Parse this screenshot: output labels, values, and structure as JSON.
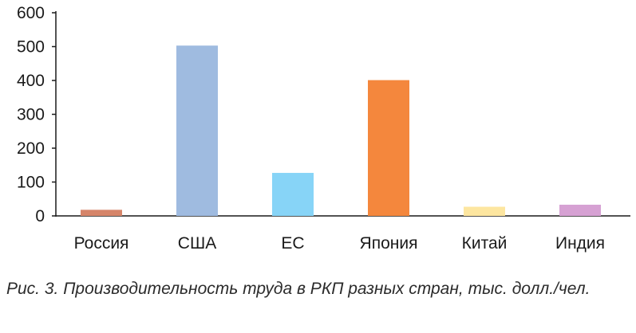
{
  "caption": "Рис. 3. Производительность труда в РКП разных стран, тыс. долл./чел.",
  "chart_data": {
    "type": "bar",
    "categories": [
      "Россия",
      "США",
      "ЕС",
      "Япония",
      "Китай",
      "Индия"
    ],
    "values": [
      18,
      503,
      127,
      401,
      27,
      33
    ],
    "colors": [
      "#d6856a",
      "#9fbbe0",
      "#87d4f7",
      "#f4873d",
      "#fde6a0",
      "#d6a1d3"
    ],
    "ylim": [
      0,
      600
    ],
    "yticks": [
      0,
      100,
      200,
      300,
      400,
      500,
      600
    ],
    "title": "",
    "xlabel": "",
    "ylabel": "",
    "grid": false,
    "legend": false
  }
}
